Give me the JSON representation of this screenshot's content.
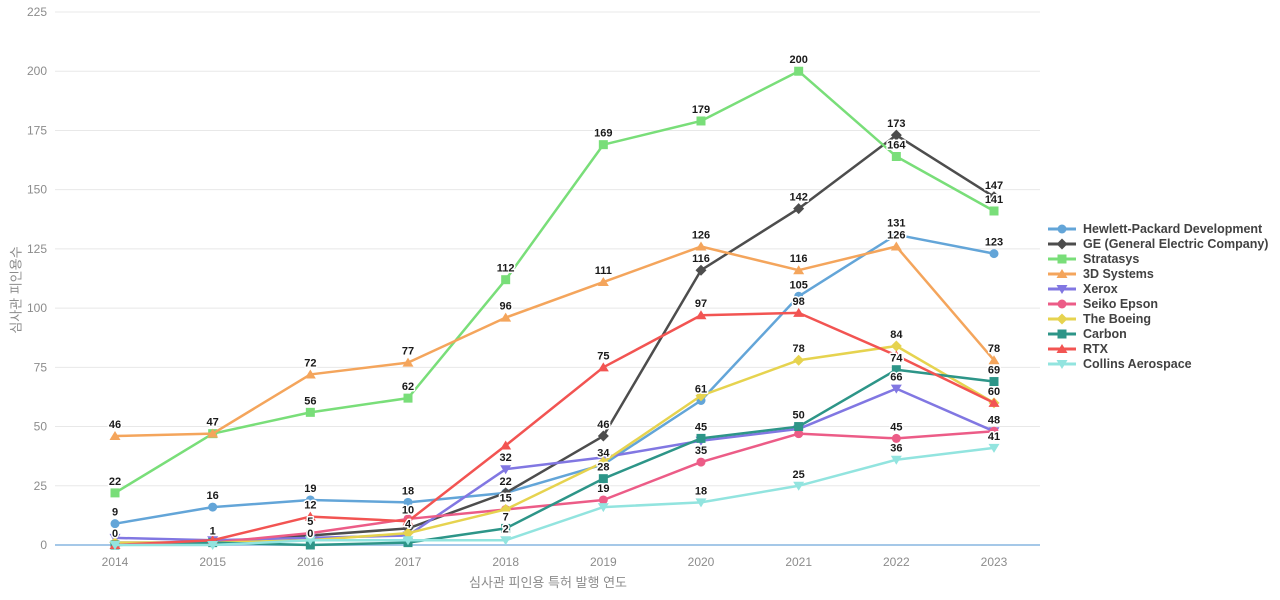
{
  "chart_data": {
    "type": "line",
    "title": "",
    "xlabel": "심사관 피인용 특허 발행 연도",
    "ylabel": "심사관 피인용수",
    "x": [
      2014,
      2015,
      2016,
      2017,
      2018,
      2019,
      2020,
      2021,
      2022,
      2023
    ],
    "ylim": [
      0,
      225
    ],
    "yticks": [
      0,
      25,
      50,
      75,
      100,
      125,
      150,
      175,
      200,
      225
    ],
    "grid": true,
    "legend_position": "right",
    "series": [
      {
        "name": "Hewlett-Packard Development",
        "slug": "hewlett-packard-development",
        "color": "#63a5d8",
        "marker": "circle",
        "values": [
          9,
          16,
          19,
          18,
          22,
          34,
          61,
          105,
          131,
          123
        ],
        "label_shown": [
          1,
          1,
          1,
          1,
          0,
          1,
          1,
          1,
          1,
          1
        ]
      },
      {
        "name": "GE (General Electric Company)",
        "slug": "ge-general-electric-company",
        "color": "#4d4d4d",
        "marker": "diamond",
        "values": [
          1,
          1,
          4,
          7,
          22,
          46,
          116,
          142,
          173,
          147
        ],
        "label_shown": [
          0,
          0,
          0,
          0,
          1,
          1,
          1,
          1,
          1,
          1
        ]
      },
      {
        "name": "Stratasys",
        "slug": "stratasys",
        "color": "#79de79",
        "marker": "square",
        "values": [
          22,
          47,
          56,
          62,
          112,
          169,
          179,
          200,
          164,
          141
        ],
        "label_shown": [
          1,
          0,
          1,
          1,
          1,
          1,
          1,
          1,
          1,
          1
        ]
      },
      {
        "name": "3D Systems",
        "slug": "3d-systems",
        "color": "#f4a55c",
        "marker": "triangle-up",
        "values": [
          46,
          47,
          72,
          77,
          96,
          111,
          126,
          116,
          126,
          78
        ],
        "label_shown": [
          1,
          1,
          1,
          1,
          1,
          1,
          1,
          1,
          1,
          1
        ]
      },
      {
        "name": "Xerox",
        "slug": "xerox",
        "color": "#8177e2",
        "marker": "triangle-down",
        "values": [
          3,
          2,
          3,
          4,
          32,
          37,
          44,
          49,
          66,
          48
        ],
        "label_shown": [
          0,
          0,
          0,
          1,
          1,
          0,
          0,
          0,
          1,
          1
        ]
      },
      {
        "name": "Seiko Epson",
        "slug": "seiko-epson",
        "color": "#ec5c87",
        "marker": "circle",
        "values": [
          0,
          1,
          5,
          11,
          15,
          19,
          35,
          47,
          45,
          48
        ],
        "label_shown": [
          0,
          0,
          1,
          0,
          0,
          1,
          1,
          0,
          1,
          0
        ]
      },
      {
        "name": "The Boeing",
        "slug": "the-boeing",
        "color": "#e6d34f",
        "marker": "diamond",
        "values": [
          1,
          1,
          2,
          5,
          15,
          35,
          63,
          78,
          84,
          60
        ],
        "label_shown": [
          0,
          0,
          0,
          0,
          1,
          0,
          0,
          1,
          1,
          0
        ]
      },
      {
        "name": "Carbon",
        "slug": "carbon",
        "color": "#2d9588",
        "marker": "square",
        "values": [
          0,
          1,
          0,
          1,
          7,
          28,
          45,
          50,
          74,
          69
        ],
        "label_shown": [
          1,
          1,
          1,
          0,
          1,
          1,
          1,
          1,
          1,
          1
        ]
      },
      {
        "name": "RTX",
        "slug": "rtx",
        "color": "#f25452",
        "marker": "triangle-up",
        "values": [
          0,
          2,
          12,
          10,
          42,
          75,
          97,
          98,
          80,
          60
        ],
        "label_shown": [
          0,
          0,
          1,
          1,
          0,
          1,
          1,
          1,
          0,
          1
        ]
      },
      {
        "name": "Collins Aerospace",
        "slug": "collins-aerospace",
        "color": "#92e4df",
        "marker": "triangle-down",
        "values": [
          0,
          0,
          2,
          2,
          2,
          16,
          18,
          25,
          36,
          41
        ],
        "label_shown": [
          0,
          0,
          0,
          0,
          1,
          0,
          1,
          1,
          1,
          1
        ]
      }
    ]
  },
  "colors": {
    "background": "#ffffff",
    "gridline": "#e8e8e8",
    "x_axis_line": "#a5c8e8",
    "tick_text": "#8c8c8c",
    "value_label": "#1a1a1a",
    "legend_text": "#424242"
  }
}
